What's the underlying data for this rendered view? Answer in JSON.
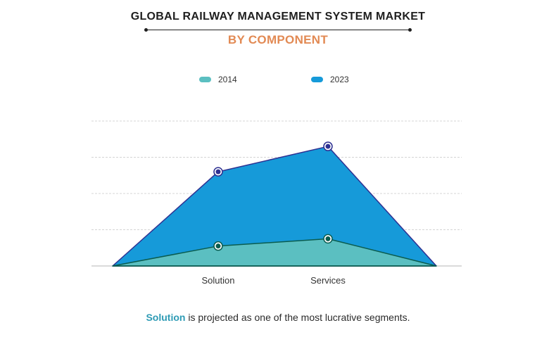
{
  "title": "GLOBAL RAILWAY MANAGEMENT SYSTEM MARKET",
  "subtitle": "BY COMPONENT",
  "footer": {
    "highlight": "Solution",
    "rest": " is projected as one of the most lucrative segments."
  },
  "chart_data": {
    "type": "area",
    "categories": [
      "",
      "Solution",
      "Services",
      ""
    ],
    "series": [
      {
        "name": "2023",
        "values": [
          0,
          2.6,
          3.3,
          0
        ],
        "color": "#169ad9",
        "marker": "#2e3192"
      },
      {
        "name": "2014",
        "values": [
          0,
          0.55,
          0.75,
          0
        ],
        "color": "#5bbfc1",
        "marker": "#0a5c4f"
      }
    ],
    "ylim": [
      0,
      4
    ],
    "grid": true,
    "legend": "top-center"
  }
}
